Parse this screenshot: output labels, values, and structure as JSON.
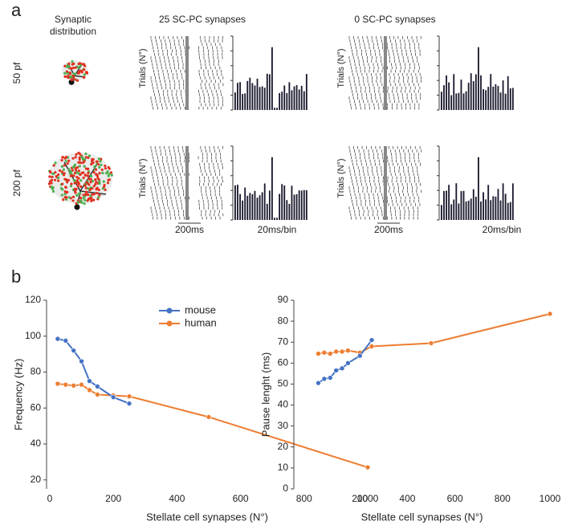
{
  "panel_a": {
    "label": "a",
    "synaptic_title": [
      "Synaptic",
      "distribution"
    ],
    "column_titles": [
      "25 SC-PC synapses",
      "0 SC-PC synapses"
    ],
    "row_labels": [
      "50 pf",
      "200 pf"
    ],
    "trials_label": "Trials (N°)",
    "time_scale": "200ms",
    "bin_scale": "20ms/bin"
  },
  "panel_b": {
    "label": "b"
  },
  "chart_data": [
    {
      "type": "line",
      "ylabel": "Frequency (Hz)",
      "xlabel": "Stellate cell synapses (N°)",
      "xlim": [
        -10,
        1000
      ],
      "xticks": [
        0,
        200,
        400,
        600,
        800,
        1000
      ],
      "ylim": [
        15,
        120
      ],
      "yticks": [
        20,
        40,
        60,
        80,
        100,
        120
      ],
      "legend": "top",
      "series": [
        {
          "name": "mouse",
          "color": "#4472c4",
          "x": [
            25,
            50,
            75,
            100,
            125,
            150,
            200,
            250
          ],
          "values": [
            98.5,
            97.5,
            92,
            86,
            75,
            72,
            66,
            62.5
          ]
        },
        {
          "name": "human",
          "color": "#ed7d31",
          "x": [
            25,
            50,
            75,
            100,
            125,
            150,
            200,
            250,
            500,
            1000
          ],
          "values": [
            73.5,
            73,
            72.5,
            73,
            70,
            67.5,
            67,
            66.5,
            55,
            27
          ]
        }
      ]
    },
    {
      "type": "line",
      "ylabel": "Pause lenght (ms)",
      "xlabel": "Stellate cell synapses (N°)",
      "xlim": [
        -78,
        1000
      ],
      "xticks": [
        200,
        400,
        600,
        800,
        1000
      ],
      "ylim": [
        0,
        90
      ],
      "yticks": [
        0,
        10,
        20,
        30,
        40,
        50,
        60,
        70,
        80,
        90
      ],
      "series": [
        {
          "name": "mouse",
          "color": "#4472c4",
          "x": [
            25,
            50,
            75,
            100,
            125,
            150,
            200,
            250
          ],
          "values": [
            50.5,
            52.5,
            53,
            56.5,
            57.5,
            60,
            63.5,
            71
          ]
        },
        {
          "name": "human",
          "color": "#ed7d31",
          "x": [
            25,
            50,
            75,
            100,
            125,
            150,
            200,
            250,
            500,
            1000
          ],
          "values": [
            64.5,
            65,
            64.5,
            65.5,
            65.5,
            66,
            65,
            68,
            69.5,
            83.5
          ]
        }
      ]
    }
  ]
}
